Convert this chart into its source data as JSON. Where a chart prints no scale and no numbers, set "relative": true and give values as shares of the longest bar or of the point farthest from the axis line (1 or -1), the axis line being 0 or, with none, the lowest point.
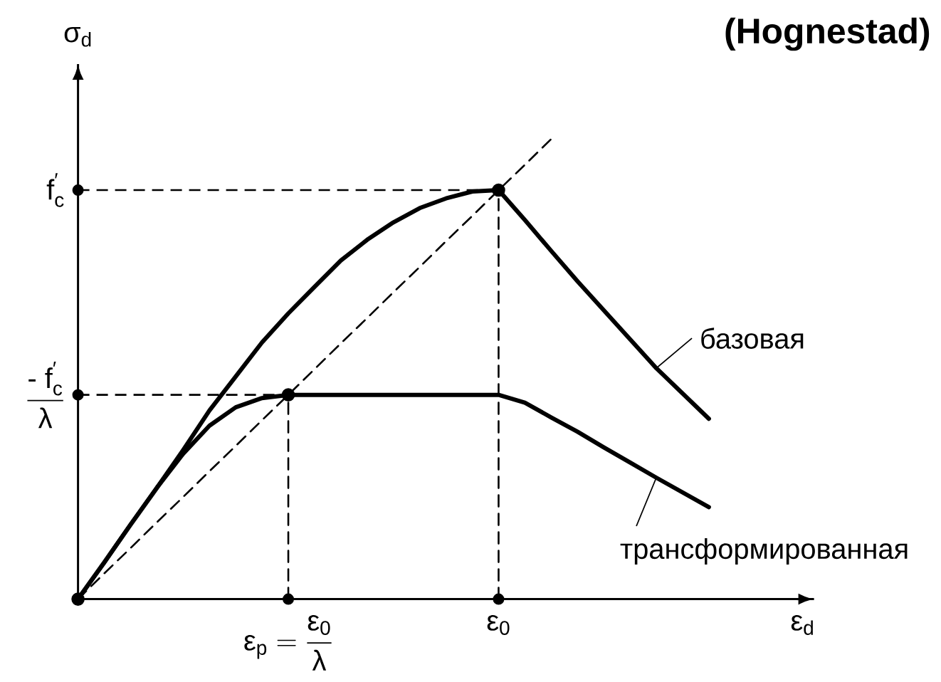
{
  "chart_data": {
    "type": "line",
    "title": "(Hognestad)",
    "xlabel": "ε$_{d}$",
    "ylabel": "σ$_{d}$",
    "relative": true,
    "categories": [
      null,
      null,
      null,
      null,
      null,
      null,
      null,
      null,
      "\\text{ε}_{\\text{p}} = \\frac{\\text{ε}_{\\text{0}}}{\\text{λ}}",
      null,
      null,
      null,
      null,
      null,
      null,
      null,
      "\\text{ε}_{\\text{0}}",
      null,
      null,
      null,
      null,
      null,
      null,
      null,
      null
    ],
    "ref_lines": [
      {
        "axis": "y",
        "value": 0.889,
        "label": "\\text{f}_{\\text{c}}^{\\text{′}}",
        "line_style": "dashed"
      },
      {
        "axis": "y",
        "value": 0.444,
        "label": "\\frac{\\text{- f}_{\\text{c}}^{\\text{′}}}{\\text{λ}}",
        "line_style": "dashed"
      }
    ],
    "series": [
      {
        "name": "базовая",
        "color": "#000000",
        "values": [
          0,
          0.08,
          0.162,
          0.242,
          0.324,
          0.41,
          0.484,
          0.558,
          0.621,
          0.679,
          0.736,
          0.781,
          0.819,
          0.85,
          0.871,
          0.886,
          0.889,
          0.824,
          0.757,
          0.691,
          0.628,
          0.565,
          0.502,
          0.447,
          0.392
        ]
      },
      {
        "name": "трансформированная",
        "color": "#000000",
        "values": [
          0,
          0.08,
          0.162,
          0.242,
          0.316,
          0.377,
          0.417,
          0.437,
          0.444,
          0.444,
          0.444,
          0.444,
          0.444,
          0.444,
          0.444,
          0.444,
          0.444,
          0.427,
          0.395,
          0.364,
          0.33,
          0.297,
          0.264,
          0.232,
          0.2
        ]
      },
      {
        "color": "#000000",
        "line_style": "dashed",
        "values": [
          0,
          0.056,
          0.111,
          0.167,
          0.222,
          0.278,
          0.333,
          0.389,
          0.444,
          0.5,
          0.556,
          0.611,
          0.667,
          0.722,
          0.778,
          0.833,
          0.889,
          0.944,
          1,
          null,
          null,
          null,
          null,
          null,
          null
        ]
      },
      {
        "type": "lollipop",
        "color": "#000000",
        "marker": "circle",
        "line_style": "dashed",
        "values": [
          0,
          null,
          null,
          null,
          null,
          null,
          null,
          null,
          0.444,
          null,
          null,
          null,
          null,
          null,
          null,
          null,
          0.889,
          null,
          null,
          null,
          null,
          null,
          null,
          null,
          null
        ]
      }
    ]
  }
}
